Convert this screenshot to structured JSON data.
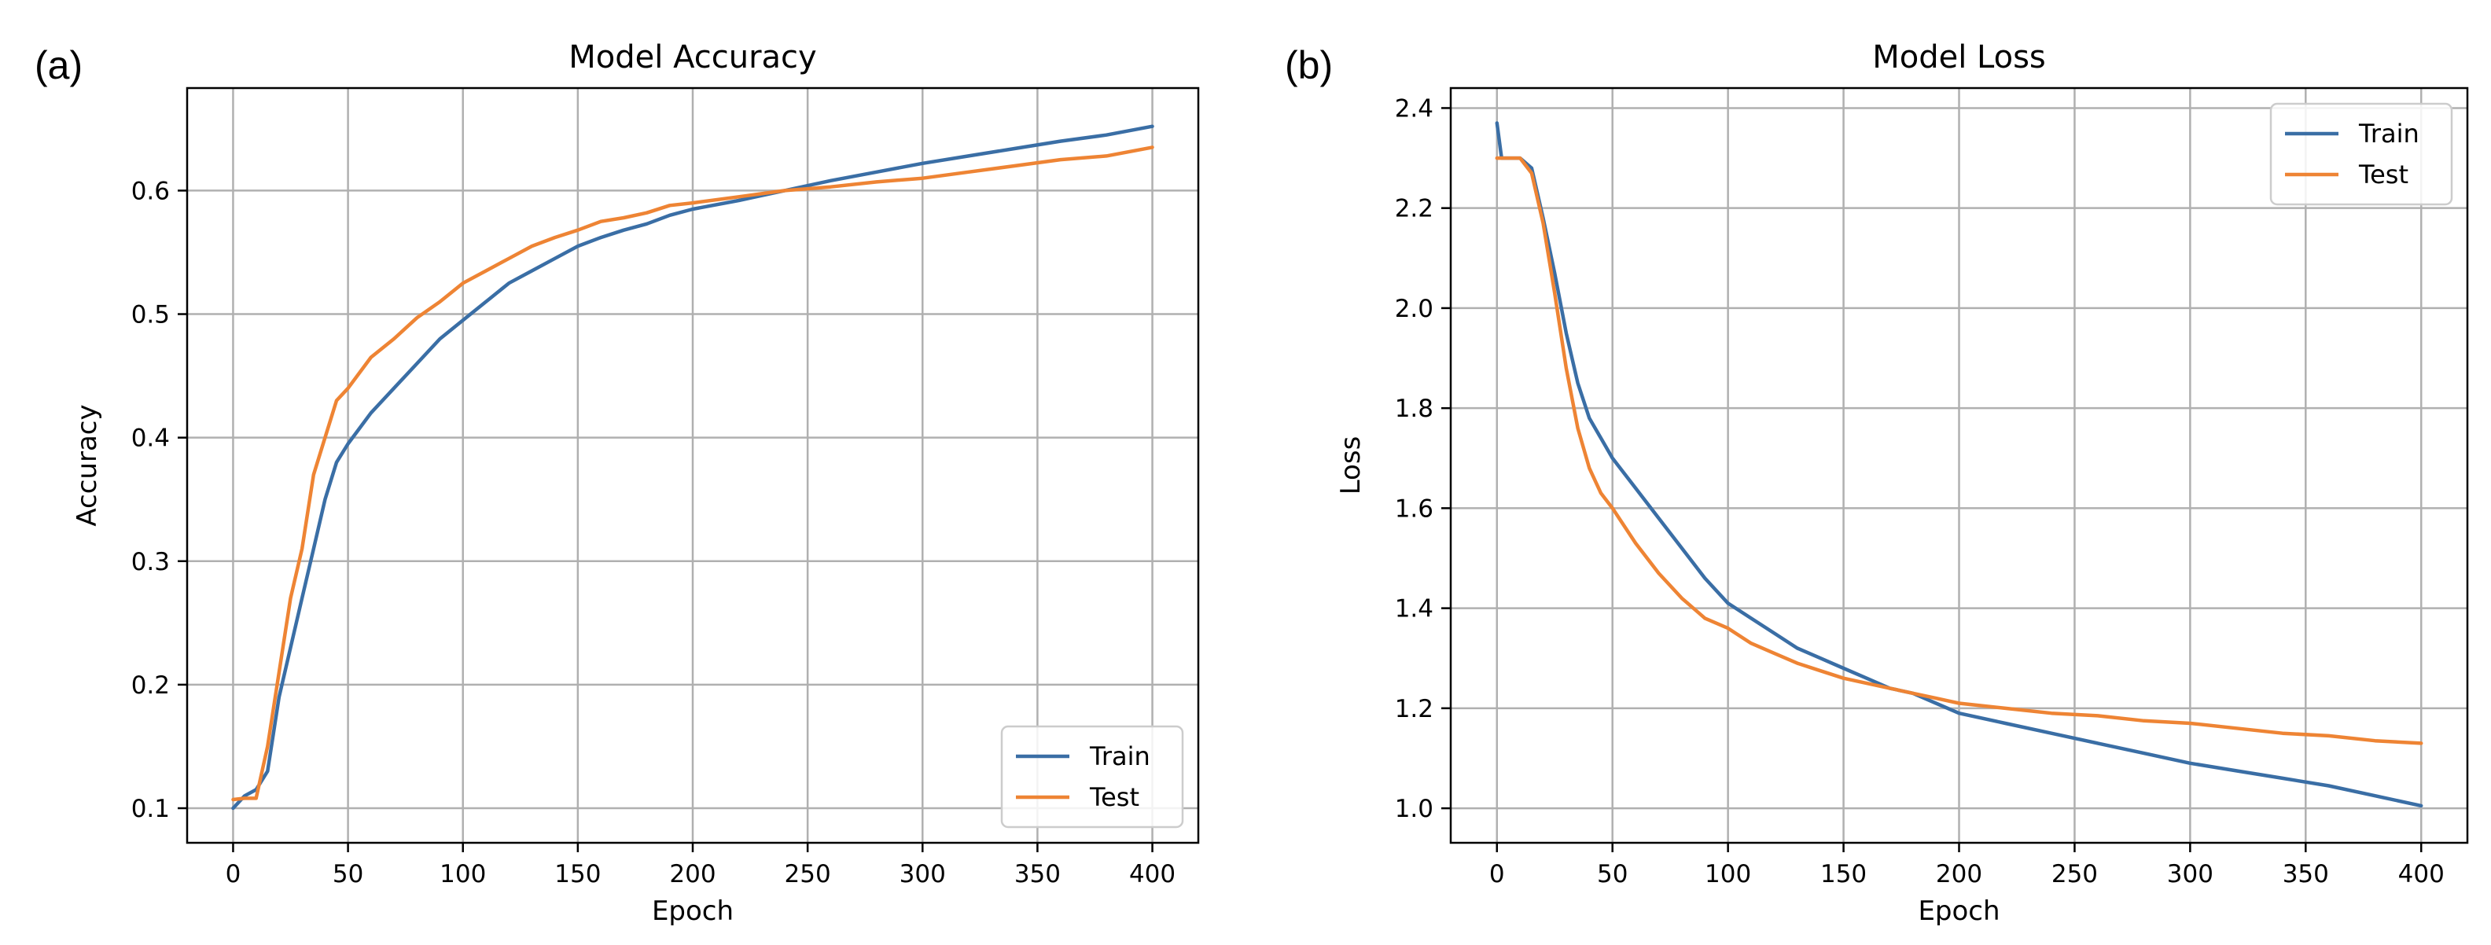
{
  "chart_data": [
    {
      "panel_label": "(a)",
      "type": "line",
      "title": "Model Accuracy",
      "xlabel": "Epoch",
      "ylabel": "Accuracy",
      "xlim": [
        -20,
        420
      ],
      "ylim": [
        0.072,
        0.683
      ],
      "xticks": [
        0,
        50,
        100,
        150,
        200,
        250,
        300,
        350,
        400
      ],
      "yticks": [
        0.1,
        0.2,
        0.3,
        0.4,
        0.5,
        0.6
      ],
      "ytick_labels": [
        "0.1",
        "0.2",
        "0.3",
        "0.4",
        "0.5",
        "0.6"
      ],
      "grid": true,
      "legend_position": "bottom-right",
      "x": [
        0,
        5,
        10,
        15,
        20,
        25,
        30,
        35,
        40,
        45,
        50,
        60,
        70,
        80,
        90,
        100,
        110,
        120,
        130,
        140,
        150,
        160,
        170,
        180,
        190,
        200,
        220,
        240,
        260,
        280,
        300,
        320,
        340,
        360,
        380,
        400
      ],
      "series": [
        {
          "name": "Train",
          "color": "#3a6ea5",
          "values": [
            0.1,
            0.11,
            0.115,
            0.13,
            0.19,
            0.23,
            0.27,
            0.31,
            0.35,
            0.38,
            0.395,
            0.42,
            0.44,
            0.46,
            0.48,
            0.495,
            0.51,
            0.525,
            0.535,
            0.545,
            0.555,
            0.562,
            0.568,
            0.573,
            0.58,
            0.585,
            0.592,
            0.6,
            0.608,
            0.615,
            0.622,
            0.628,
            0.634,
            0.64,
            0.645,
            0.652
          ]
        },
        {
          "name": "Test",
          "color": "#ee8434",
          "values": [
            0.107,
            0.108,
            0.108,
            0.15,
            0.21,
            0.27,
            0.31,
            0.37,
            0.4,
            0.43,
            0.44,
            0.465,
            0.48,
            0.497,
            0.51,
            0.525,
            0.535,
            0.545,
            0.555,
            0.562,
            0.568,
            0.575,
            0.578,
            0.582,
            0.588,
            0.59,
            0.595,
            0.6,
            0.603,
            0.607,
            0.61,
            0.615,
            0.62,
            0.625,
            0.628,
            0.635
          ]
        }
      ]
    },
    {
      "panel_label": "(b)",
      "type": "line",
      "title": "Model Loss",
      "xlabel": "Epoch",
      "ylabel": "Loss",
      "xlim": [
        -20,
        420
      ],
      "ylim": [
        0.931,
        2.44
      ],
      "xticks": [
        0,
        50,
        100,
        150,
        200,
        250,
        300,
        350,
        400
      ],
      "yticks": [
        1.0,
        1.2,
        1.4,
        1.6,
        1.8,
        2.0,
        2.2,
        2.4
      ],
      "ytick_labels": [
        "1.0",
        "1.2",
        "1.4",
        "1.6",
        "1.8",
        "2.0",
        "2.2",
        "2.4"
      ],
      "grid": true,
      "legend_position": "top-right",
      "x": [
        0,
        2,
        5,
        10,
        15,
        20,
        25,
        30,
        35,
        40,
        45,
        50,
        60,
        70,
        80,
        90,
        100,
        110,
        120,
        130,
        140,
        150,
        160,
        170,
        180,
        190,
        200,
        220,
        240,
        260,
        280,
        300,
        320,
        340,
        360,
        380,
        400
      ],
      "series": [
        {
          "name": "Train",
          "color": "#3a6ea5",
          "values": [
            2.37,
            2.3,
            2.3,
            2.3,
            2.28,
            2.18,
            2.07,
            1.95,
            1.85,
            1.78,
            1.74,
            1.7,
            1.64,
            1.58,
            1.52,
            1.46,
            1.41,
            1.38,
            1.35,
            1.32,
            1.3,
            1.28,
            1.26,
            1.24,
            1.23,
            1.21,
            1.19,
            1.17,
            1.15,
            1.13,
            1.11,
            1.09,
            1.075,
            1.06,
            1.045,
            1.025,
            1.005
          ]
        },
        {
          "name": "Test",
          "color": "#ee8434",
          "values": [
            2.3,
            2.3,
            2.3,
            2.3,
            2.27,
            2.17,
            2.03,
            1.88,
            1.76,
            1.68,
            1.63,
            1.6,
            1.53,
            1.47,
            1.42,
            1.38,
            1.36,
            1.33,
            1.31,
            1.29,
            1.275,
            1.26,
            1.25,
            1.24,
            1.23,
            1.22,
            1.21,
            1.2,
            1.19,
            1.185,
            1.175,
            1.17,
            1.16,
            1.15,
            1.145,
            1.135,
            1.13
          ]
        }
      ]
    }
  ]
}
